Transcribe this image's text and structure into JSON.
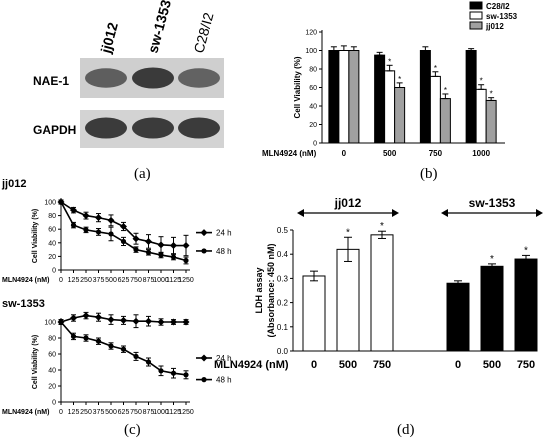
{
  "panels": {
    "a": {
      "label": "(a)",
      "cell_lines": [
        "jj012",
        "sw-1353",
        "C28/I2"
      ],
      "rows": [
        {
          "label": "NAE-1",
          "intensity": [
            0.7,
            0.88,
            0.68
          ]
        },
        {
          "label": "GAPDH",
          "intensity": [
            0.88,
            0.88,
            0.88
          ]
        }
      ]
    },
    "b": {
      "label": "(b)"
    },
    "c": {
      "label": "(c)"
    },
    "d": {
      "label": "(d)"
    }
  },
  "chart_data": [
    {
      "id": "b",
      "type": "bar",
      "xlabel": "MLN4924 (nM)",
      "ylabel": "Cell Viability (%)",
      "categories": [
        "0",
        "500",
        "750",
        "1000"
      ],
      "ylim": [
        0,
        120
      ],
      "yticks": [
        0,
        20,
        40,
        60,
        80,
        100,
        120
      ],
      "legend_position": "top-right",
      "series": [
        {
          "name": "C28/I2",
          "color": "#000000",
          "values": [
            100,
            95,
            100,
            100
          ],
          "errors": [
            4,
            3,
            4,
            2
          ],
          "significant": [
            false,
            false,
            false,
            false
          ]
        },
        {
          "name": "sw-1353",
          "color": "#ffffff",
          "values": [
            100,
            78,
            72,
            58
          ],
          "errors": [
            5,
            6,
            5,
            5
          ],
          "significant": [
            false,
            true,
            true,
            true
          ]
        },
        {
          "name": "jj012",
          "color": "#a0a0a0",
          "values": [
            100,
            60,
            48,
            46
          ],
          "errors": [
            4,
            5,
            5,
            3
          ],
          "significant": [
            false,
            true,
            true,
            true
          ]
        }
      ]
    },
    {
      "id": "c-top",
      "type": "line",
      "title": "jj012",
      "xlabel": "MLN4924 (nM)",
      "ylabel": "Cell Viability (%)",
      "x": [
        0,
        125,
        250,
        375,
        500,
        625,
        750,
        875,
        1000,
        1125,
        1250
      ],
      "xticks": [
        0,
        125,
        250,
        375,
        500,
        625,
        750,
        875,
        1000,
        1125,
        1250
      ],
      "xlim": [
        0,
        1250
      ],
      "ylim": [
        0,
        100
      ],
      "yticks": [
        0,
        20,
        40,
        60,
        80,
        100
      ],
      "series": [
        {
          "name": "24 h",
          "marker": "diamond",
          "values": [
            100,
            88,
            80,
            77,
            73,
            64,
            46,
            42,
            37,
            36,
            36
          ],
          "errors": [
            3,
            4,
            5,
            6,
            8,
            6,
            8,
            10,
            12,
            12,
            15
          ]
        },
        {
          "name": "48 h",
          "marker": "circle",
          "values": [
            100,
            66,
            59,
            56,
            53,
            42,
            30,
            26,
            22,
            19,
            14
          ],
          "errors": [
            3,
            4,
            4,
            5,
            10,
            6,
            4,
            4,
            4,
            4,
            5
          ]
        }
      ]
    },
    {
      "id": "c-bottom",
      "type": "line",
      "title": "sw-1353",
      "xlabel": "MLN4924 (nM)",
      "ylabel": "Cell Viability (%)",
      "x": [
        0,
        125,
        250,
        375,
        500,
        625,
        750,
        875,
        1000,
        1125,
        1250
      ],
      "xticks": [
        0,
        125,
        250,
        375,
        500,
        625,
        750,
        875,
        1000,
        1125,
        1250
      ],
      "xlim": [
        0,
        1250
      ],
      "ylim": [
        0,
        100
      ],
      "yticks": [
        0,
        20,
        40,
        60,
        80,
        100
      ],
      "series": [
        {
          "name": "24 h",
          "marker": "diamond",
          "values": [
            100,
            105,
            108,
            106,
            103,
            102,
            101,
            101,
            100,
            100,
            100
          ],
          "errors": [
            3,
            4,
            4,
            5,
            6,
            5,
            8,
            6,
            4,
            3,
            3
          ]
        },
        {
          "name": "48 h",
          "marker": "circle",
          "values": [
            100,
            82,
            80,
            76,
            70,
            66,
            57,
            50,
            39,
            36,
            34
          ],
          "errors": [
            3,
            4,
            4,
            4,
            4,
            4,
            5,
            5,
            6,
            6,
            5
          ]
        }
      ]
    },
    {
      "id": "d",
      "type": "bar",
      "ylabel": "LDH assay",
      "ylabel2": "(Absorbance: 450 nM)",
      "xlabel": "MLN4924 (nM)",
      "groups": [
        {
          "name": "jj012",
          "color": "#ffffff",
          "categories": [
            "0",
            "500",
            "750"
          ],
          "values": [
            0.31,
            0.42,
            0.48
          ],
          "errors": [
            0.02,
            0.05,
            0.015
          ],
          "significant": [
            false,
            true,
            true
          ]
        },
        {
          "name": "sw-1353",
          "color": "#000000",
          "categories": [
            "0",
            "500",
            "750"
          ],
          "values": [
            0.28,
            0.35,
            0.38
          ],
          "errors": [
            0.01,
            0.01,
            0.015
          ],
          "significant": [
            false,
            true,
            true
          ]
        }
      ],
      "ylim": [
        0,
        0.5
      ],
      "yticks": [
        0.0,
        0.1,
        0.2,
        0.3,
        0.4,
        0.5
      ],
      "sig_marker": "*"
    }
  ]
}
